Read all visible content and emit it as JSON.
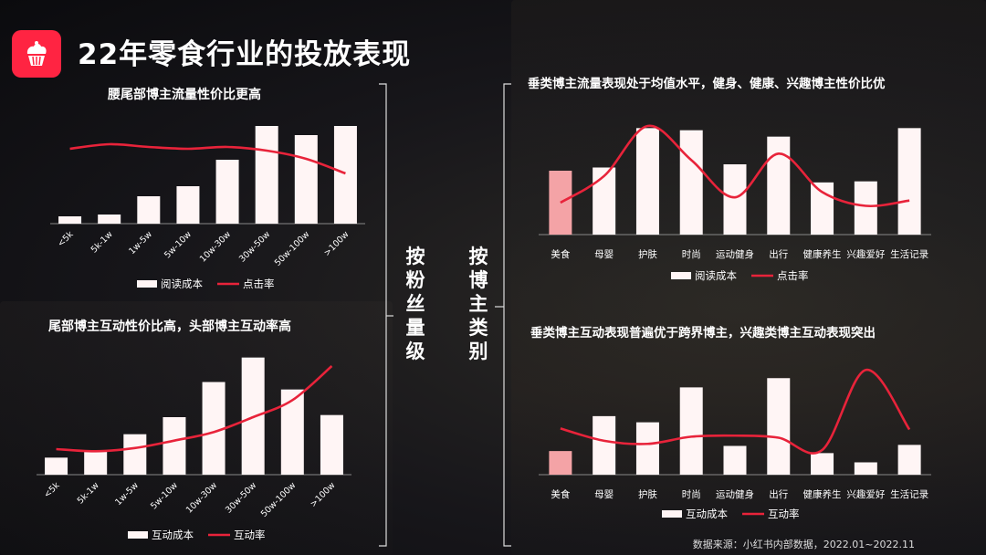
{
  "title": "22年零食行业的投放表现",
  "left_group_label": "按粉丝量级",
  "right_group_label": "按博主类别",
  "source": "数据来源：小红书内部数据，2022.01~2022.11",
  "colors": {
    "accent": "#ff2442",
    "bar": "#fff5f5",
    "bar_highlight": "#f4a3a6",
    "line": "#e8233a"
  },
  "logo_icon": "cupcake-icon",
  "chart_data": [
    {
      "type": "bar",
      "title": "腰尾部博主流量性价比更高",
      "categories": [
        "<5k",
        "5k-1w",
        "1w-5w",
        "5w-10w",
        "10w-30w",
        "30w-50w",
        "50w-100w",
        ">100w"
      ],
      "series": [
        {
          "name": "阅读成本",
          "type": "bar",
          "values": [
            8,
            10,
            30,
            41,
            70,
            107,
            97,
            107
          ]
        },
        {
          "name": "点击率",
          "type": "line",
          "values": [
            82,
            87,
            84,
            82,
            84,
            80,
            71,
            55
          ]
        }
      ],
      "ylim": [
        0,
        120
      ],
      "legend": "bottom"
    },
    {
      "type": "bar",
      "title": "尾部博主互动性价比高，头部博主互动率高",
      "categories": [
        "<5k",
        "5k-1w",
        "1w-5w",
        "5w-10w",
        "10w-30w",
        "30w-50w",
        "50w-100w",
        ">100w"
      ],
      "series": [
        {
          "name": "互动成本",
          "type": "bar",
          "values": [
            16,
            22,
            38,
            54,
            87,
            110,
            80,
            56
          ]
        },
        {
          "name": "互动率",
          "type": "line",
          "values": [
            24,
            22,
            25,
            32,
            40,
            54,
            70,
            102
          ]
        }
      ],
      "ylim": [
        0,
        120
      ],
      "legend": "bottom"
    },
    {
      "type": "bar",
      "title": "垂类博主流量表现处于均值水平，健身、健康、兴趣博主性价比优",
      "categories": [
        "美食",
        "母婴",
        "护肤",
        "时尚",
        "运动健身",
        "出行",
        "健康养生",
        "兴趣爱好",
        "生活记录"
      ],
      "series": [
        {
          "name": "阅读成本",
          "type": "bar",
          "values": [
            60,
            63,
            100,
            98,
            66,
            92,
            49,
            50,
            100
          ]
        },
        {
          "name": "点击率",
          "type": "line",
          "values": [
            30,
            55,
            102,
            70,
            35,
            76,
            40,
            27,
            32
          ]
        }
      ],
      "ylim": [
        0,
        120
      ],
      "legend": "bottom"
    },
    {
      "type": "bar",
      "title": "垂类博主互动表现普遍优于跨界博主，兴趣类博主互动表现突出",
      "categories": [
        "美食",
        "母婴",
        "护肤",
        "时尚",
        "运动健身",
        "出行",
        "健康养生",
        "兴趣爱好",
        "生活记录"
      ],
      "series": [
        {
          "name": "互动成本",
          "type": "bar",
          "values": [
            23,
            57,
            51,
            85,
            28,
            94,
            21,
            12,
            29
          ]
        },
        {
          "name": "互动率",
          "type": "line",
          "values": [
            45,
            33,
            30,
            37,
            38,
            36,
            24,
            102,
            44
          ]
        }
      ],
      "ylim": [
        0,
        120
      ],
      "legend": "bottom"
    }
  ]
}
